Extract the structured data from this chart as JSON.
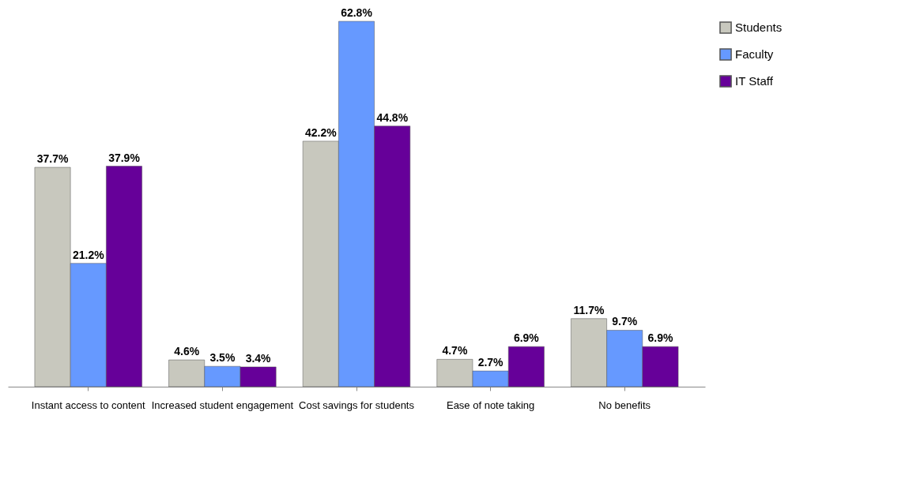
{
  "chart_data": {
    "type": "bar",
    "categories": [
      "Instant access to content",
      "Increased student engagement",
      "Cost savings for students",
      "Ease of note taking",
      "No benefits"
    ],
    "series": [
      {
        "name": "Students",
        "color": "#c8c8be",
        "values": [
          37.7,
          4.6,
          42.2,
          4.7,
          11.7
        ],
        "value_labels": [
          "37.7%",
          "4.6%",
          "42.2%",
          "4.7%",
          "11.7%"
        ]
      },
      {
        "name": "Faculty",
        "color": "#6699ff",
        "values": [
          21.2,
          3.5,
          62.8,
          2.7,
          9.7
        ],
        "value_labels": [
          "21.2%",
          "3.5%",
          "62.8%",
          "2.7%",
          "9.7%"
        ]
      },
      {
        "name": "IT Staff",
        "color": "#660099",
        "values": [
          37.9,
          3.4,
          44.8,
          6.9,
          6.9
        ],
        "value_labels": [
          "37.9%",
          "3.4%",
          "44.8%",
          "6.9%",
          "6.9%"
        ]
      }
    ],
    "legend": "right",
    "grid": false
  }
}
